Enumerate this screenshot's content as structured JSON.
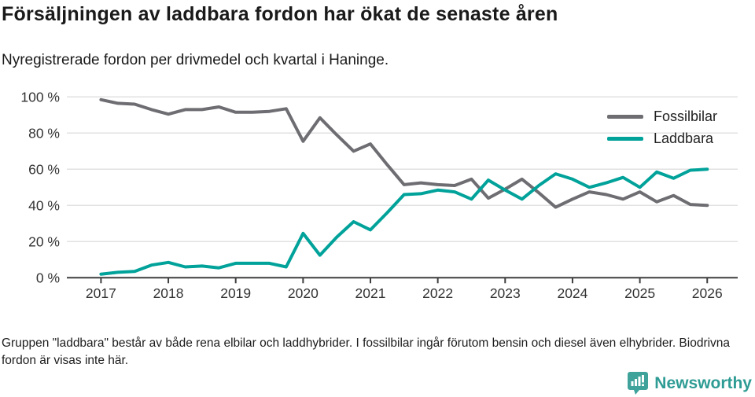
{
  "title": "Försäljningen av laddbara fordon har ökat de senaste åren",
  "subtitle": "Nyregistrerade fordon per drivmedel och kvartal i Haninge.",
  "legend": {
    "items": [
      {
        "label": "Fossilbilar",
        "color": "#6d6d72"
      },
      {
        "label": "Laddbara",
        "color": "#00a29a"
      }
    ]
  },
  "footer": {
    "note": "Gruppen \"laddbara\" består av både rena elbilar och laddhybrider. I fossilbilar ingår förutom bensin och diesel även elhybrider. Biodrivna fordon är visas inte här."
  },
  "logo": {
    "text": "Newsworthy",
    "color": "#2e9c94",
    "icon": "newsworthy-pin-barchart-icon"
  },
  "chart_data": {
    "type": "line",
    "title": "Försäljningen av laddbara fordon har ökat de senaste åren",
    "subtitle": "Nyregistrerade fordon per drivmedel och kvartal i Haninge.",
    "xlabel": "",
    "ylabel": "",
    "unit": "%",
    "ylim": [
      0,
      100
    ],
    "grid": true,
    "gridline_color": "#e2e2e2",
    "axis_color": "#3f3f3f",
    "tick_label_color": "#333333",
    "legend_position": "top-right",
    "y_tick_labels": [
      "0 %",
      "20 %",
      "40 %",
      "60 %",
      "80 %",
      "100 %"
    ],
    "y_tick_values": [
      0,
      20,
      40,
      60,
      80,
      100
    ],
    "x_tick_labels": [
      "2017",
      "2018",
      "2019",
      "2020",
      "2021",
      "2022",
      "2023",
      "2024",
      "2025",
      "2026"
    ],
    "categories": [
      "2017-Q1",
      "2017-Q2",
      "2017-Q3",
      "2017-Q4",
      "2018-Q1",
      "2018-Q2",
      "2018-Q3",
      "2018-Q4",
      "2019-Q1",
      "2019-Q2",
      "2019-Q3",
      "2019-Q4",
      "2020-Q1",
      "2020-Q2",
      "2020-Q3",
      "2020-Q4",
      "2021-Q1",
      "2021-Q2",
      "2021-Q3",
      "2021-Q4",
      "2022-Q1",
      "2022-Q2",
      "2022-Q3",
      "2022-Q4",
      "2023-Q1",
      "2023-Q2",
      "2023-Q3",
      "2023-Q4",
      "2024-Q1",
      "2024-Q2",
      "2024-Q3",
      "2024-Q4",
      "2025-Q1",
      "2025-Q2",
      "2025-Q3",
      "2025-Q4",
      "2026-Q1"
    ],
    "series": [
      {
        "name": "Fossilbilar",
        "color": "#6d6d72",
        "values": [
          98.5,
          96.5,
          96,
          93,
          90.5,
          93,
          93,
          94.5,
          91.5,
          91.5,
          92,
          93.5,
          75.5,
          88.5,
          79,
          70,
          74,
          62.5,
          51.5,
          52.5,
          51.5,
          51,
          54.5,
          44,
          49,
          54.5,
          47,
          39,
          43.5,
          47.5,
          46,
          43.5,
          47.5,
          42,
          45.5,
          40.5,
          40
        ]
      },
      {
        "name": "Laddbara",
        "color": "#00a29a",
        "values": [
          2,
          3,
          3.5,
          7,
          8.5,
          6,
          6.5,
          5.5,
          8,
          8,
          8,
          6,
          24.5,
          12.5,
          22.5,
          31,
          26.5,
          36,
          46,
          46.5,
          48.5,
          47.5,
          43.5,
          54,
          48.5,
          43.5,
          51,
          57.5,
          54.5,
          50,
          52.5,
          55.5,
          50,
          58.5,
          55,
          59.5,
          60
        ]
      }
    ]
  }
}
